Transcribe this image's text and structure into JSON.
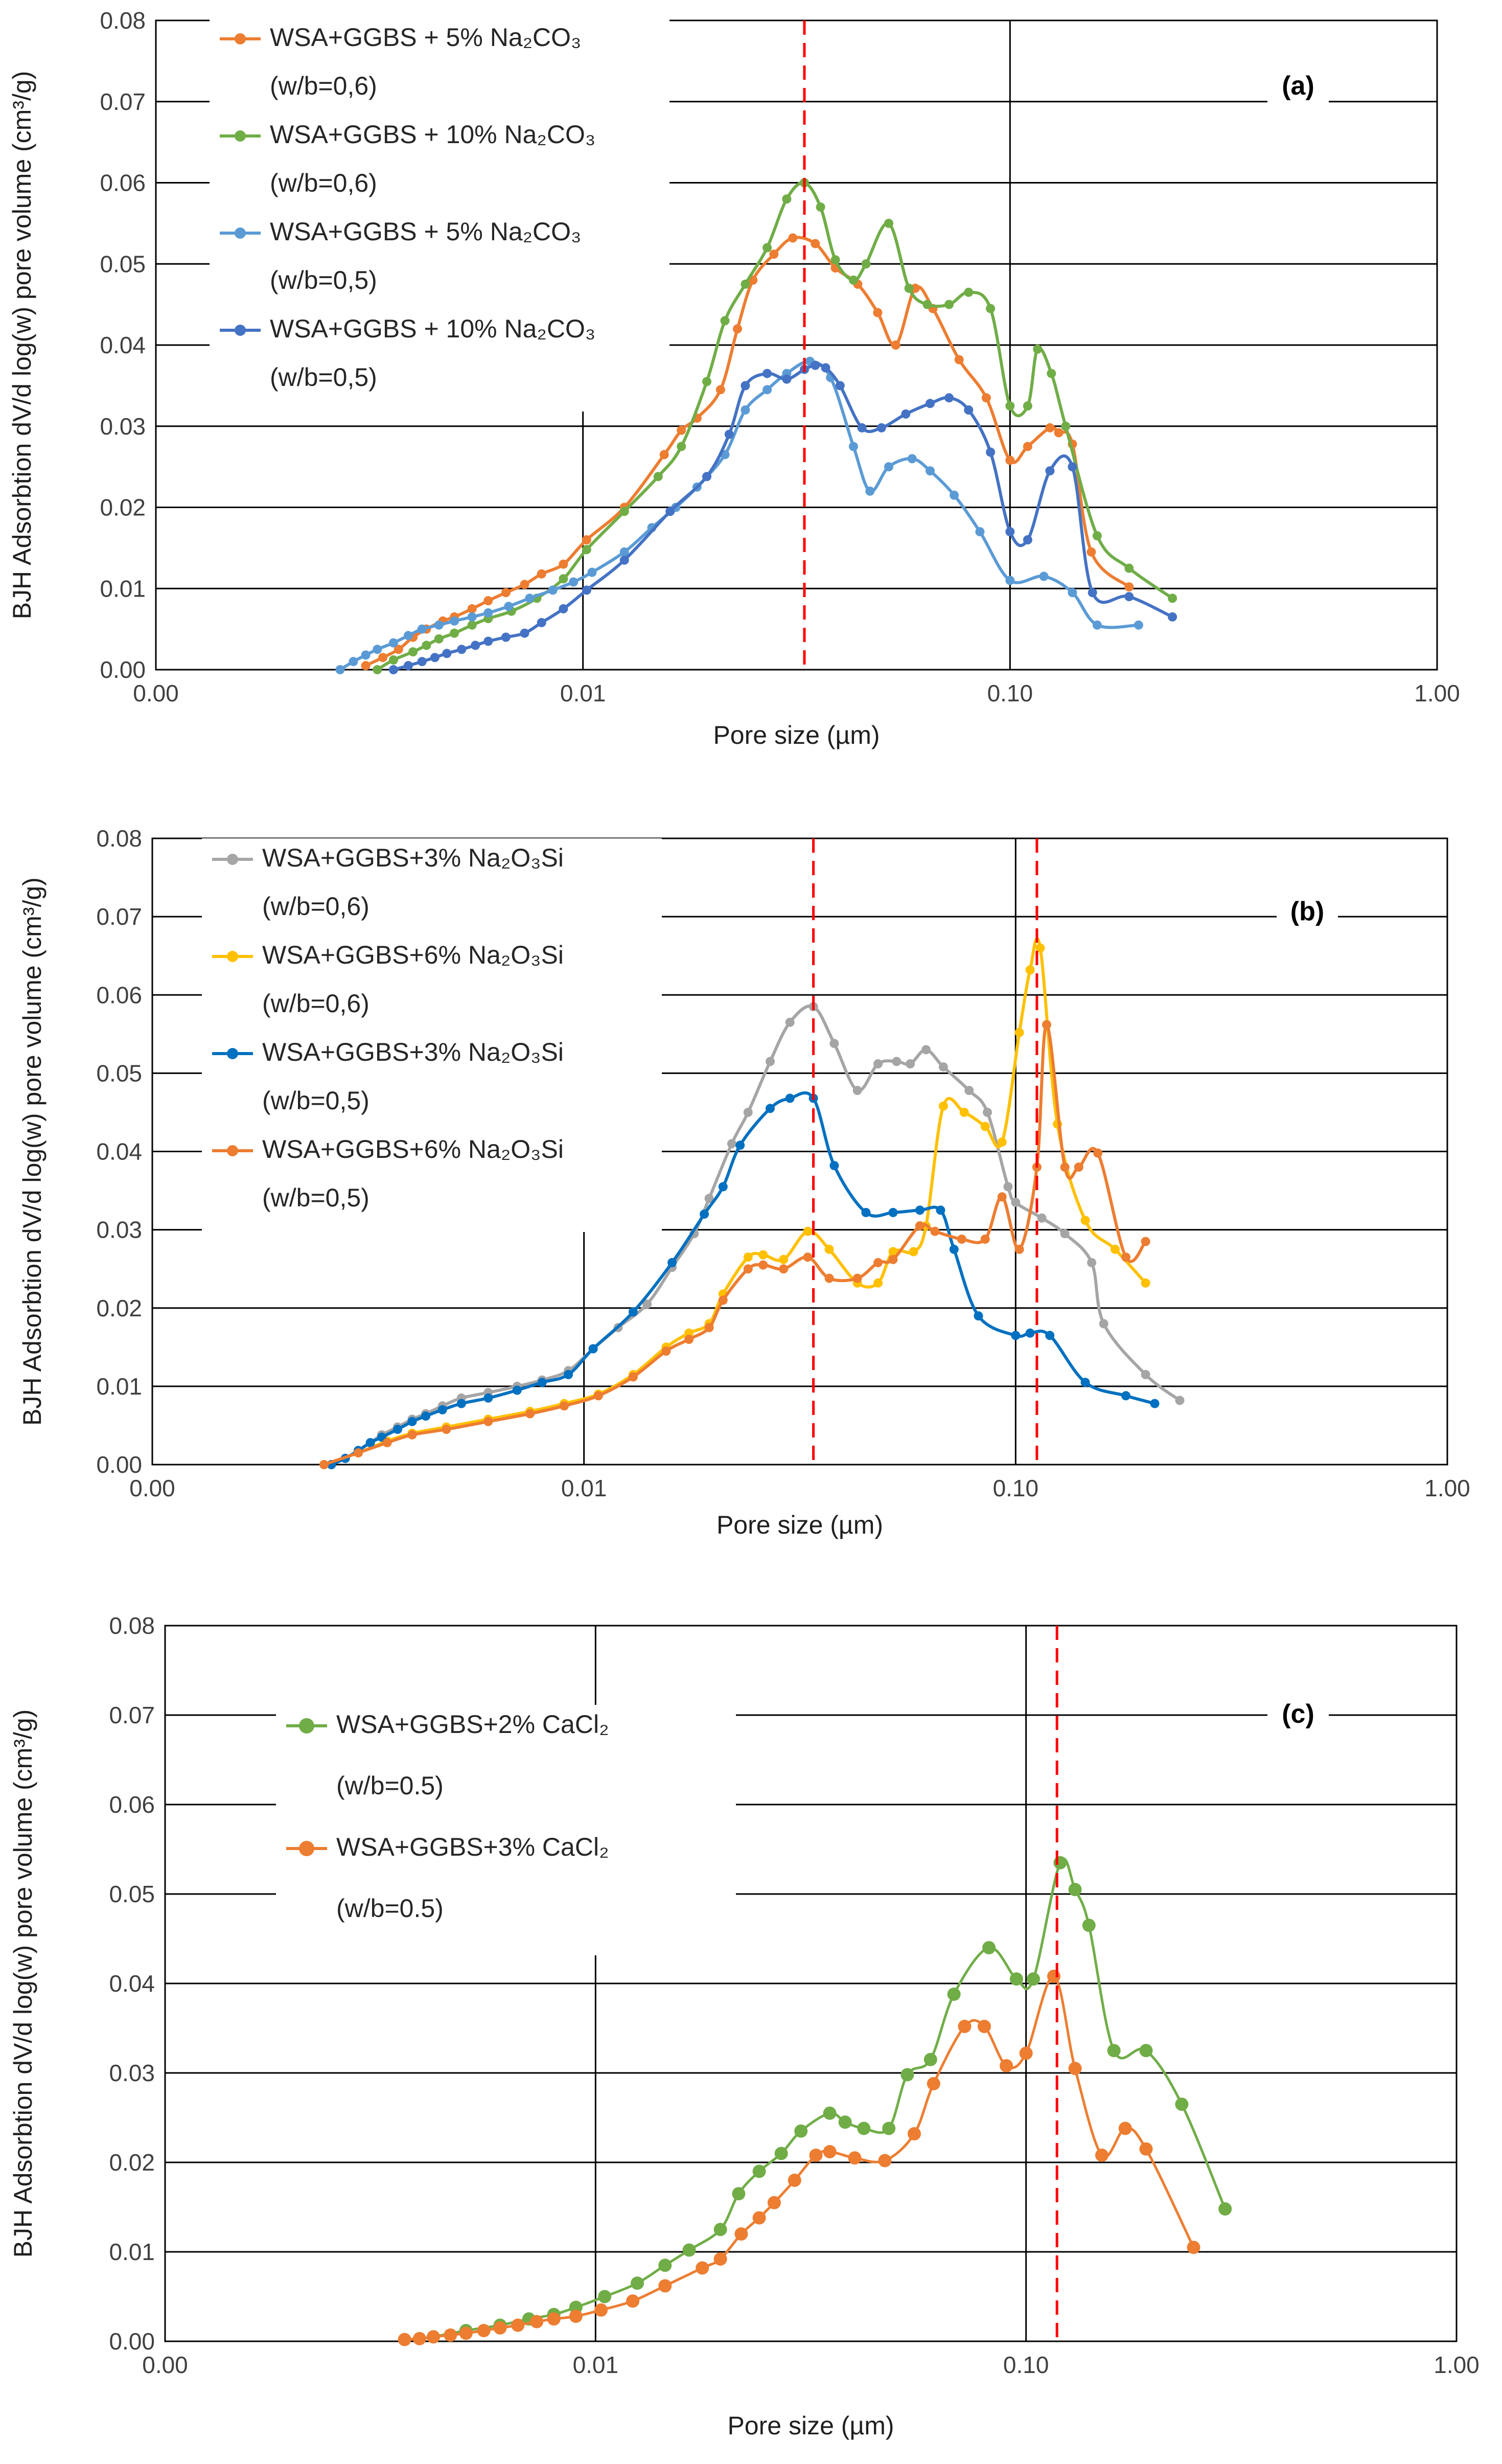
{
  "chart_data": [
    {
      "type": "line",
      "panel_label": "(a)",
      "xlabel": "Pore size (µm)",
      "ylabel": "BJH Adsorbtion dV/d log(w) pore volume (cm³/g)",
      "x_scale": "log",
      "xlim": [
        0.001,
        1.0
      ],
      "ylim": [
        0,
        0.08
      ],
      "x_ticks": [
        "0.00",
        "0.01",
        "0.10",
        "1.00"
      ],
      "y_ticks": [
        "0.00",
        "0.01",
        "0.02",
        "0.03",
        "0.04",
        "0.05",
        "0.06",
        "0.07",
        "0.08"
      ],
      "grid": "horizontal",
      "legend_position": "top-left",
      "reference_lines": [
        0.033
      ],
      "series": [
        {
          "name": "WSA+GGBS + 5% Na₂CO₃",
          "subname": "(w/b=0,6)",
          "color": "#ED7D31",
          "x": [
            0.0031,
            0.0034,
            0.0037,
            0.004,
            0.0043,
            0.0047,
            0.005,
            0.0055,
            0.006,
            0.0066,
            0.0073,
            0.008,
            0.009,
            0.0102,
            0.0125,
            0.0155,
            0.017,
            0.0185,
            0.021,
            0.023,
            0.025,
            0.028,
            0.031,
            0.035,
            0.039,
            0.044,
            0.049,
            0.054,
            0.06,
            0.066,
            0.076,
            0.088,
            0.1,
            0.11,
            0.124,
            0.13,
            0.14,
            0.155,
            0.19
          ],
          "y": [
            0.0005,
            0.0015,
            0.0025,
            0.004,
            0.005,
            0.006,
            0.0065,
            0.0075,
            0.0085,
            0.0095,
            0.0105,
            0.0118,
            0.013,
            0.016,
            0.02,
            0.0265,
            0.0295,
            0.031,
            0.0345,
            0.042,
            0.048,
            0.0512,
            0.0532,
            0.0525,
            0.0495,
            0.0475,
            0.044,
            0.04,
            0.047,
            0.0445,
            0.0382,
            0.0335,
            0.0258,
            0.0275,
            0.0298,
            0.0292,
            0.0278,
            0.0145,
            0.0102
          ]
        },
        {
          "name": "WSA+GGBS + 10% Na₂CO₃",
          "subname": "(w/b=0,6)",
          "color": "#70AD47",
          "x": [
            0.0033,
            0.0036,
            0.004,
            0.0043,
            0.0046,
            0.005,
            0.0055,
            0.006,
            0.0068,
            0.0078,
            0.009,
            0.0102,
            0.0125,
            0.015,
            0.017,
            0.0195,
            0.0215,
            0.024,
            0.027,
            0.03,
            0.033,
            0.036,
            0.039,
            0.043,
            0.046,
            0.052,
            0.058,
            0.064,
            0.072,
            0.08,
            0.09,
            0.1,
            0.11,
            0.116,
            0.125,
            0.135,
            0.16,
            0.19,
            0.24
          ],
          "y": [
            0,
            0.0012,
            0.0022,
            0.003,
            0.0038,
            0.0045,
            0.0055,
            0.0063,
            0.0072,
            0.0088,
            0.0112,
            0.0148,
            0.0195,
            0.0238,
            0.0275,
            0.0355,
            0.043,
            0.0475,
            0.052,
            0.058,
            0.06,
            0.057,
            0.0505,
            0.048,
            0.05,
            0.055,
            0.047,
            0.045,
            0.045,
            0.0465,
            0.0445,
            0.0325,
            0.0325,
            0.0395,
            0.0365,
            0.03,
            0.0165,
            0.0125,
            0.0088
          ]
        },
        {
          "name": "WSA+GGBS + 5% Na₂CO₃",
          "subname": "(w/b=0,5)",
          "color": "#5B9BD5",
          "x": [
            0.0027,
            0.0029,
            0.0031,
            0.0033,
            0.0036,
            0.0039,
            0.0042,
            0.0046,
            0.005,
            0.0055,
            0.006,
            0.0067,
            0.0075,
            0.0085,
            0.0095,
            0.0105,
            0.0125,
            0.0145,
            0.0165,
            0.0185,
            0.0215,
            0.024,
            0.027,
            0.03,
            0.034,
            0.038,
            0.043,
            0.047,
            0.052,
            0.059,
            0.065,
            0.074,
            0.085,
            0.1,
            0.12,
            0.14,
            0.16,
            0.2
          ],
          "y": [
            0,
            0.001,
            0.0018,
            0.0025,
            0.0033,
            0.0042,
            0.005,
            0.0055,
            0.006,
            0.0065,
            0.007,
            0.0078,
            0.0088,
            0.0098,
            0.0108,
            0.012,
            0.0145,
            0.0175,
            0.02,
            0.0225,
            0.0265,
            0.032,
            0.0345,
            0.0365,
            0.038,
            0.036,
            0.0275,
            0.022,
            0.025,
            0.026,
            0.0245,
            0.0215,
            0.017,
            0.011,
            0.0115,
            0.0095,
            0.0055,
            0.0055
          ]
        },
        {
          "name": "WSA+GGBS + 10% Na₂CO₃",
          "subname": "(w/b=0,5)",
          "color": "#4472C4",
          "x": [
            0.0036,
            0.0039,
            0.0042,
            0.0045,
            0.0048,
            0.0052,
            0.0056,
            0.006,
            0.0066,
            0.0073,
            0.008,
            0.009,
            0.0102,
            0.0125,
            0.016,
            0.0195,
            0.022,
            0.024,
            0.027,
            0.03,
            0.033,
            0.035,
            0.037,
            0.04,
            0.045,
            0.05,
            0.057,
            0.065,
            0.072,
            0.08,
            0.09,
            0.1,
            0.11,
            0.124,
            0.14,
            0.156,
            0.19,
            0.24
          ],
          "y": [
            0,
            0.0005,
            0.001,
            0.0015,
            0.002,
            0.0025,
            0.003,
            0.0035,
            0.004,
            0.0045,
            0.0058,
            0.0075,
            0.0098,
            0.0135,
            0.0195,
            0.0238,
            0.029,
            0.035,
            0.0365,
            0.0358,
            0.037,
            0.0375,
            0.0372,
            0.035,
            0.0298,
            0.0298,
            0.0315,
            0.0328,
            0.0335,
            0.032,
            0.0268,
            0.017,
            0.016,
            0.0245,
            0.025,
            0.0095,
            0.009,
            0.0065
          ]
        }
      ]
    },
    {
      "type": "line",
      "panel_label": "(b)",
      "xlabel": "Pore size (µm)",
      "ylabel": "BJH Adsorbtion dV/d log(w) pore volume (cm³/g)",
      "x_scale": "log",
      "xlim": [
        0.001,
        1.0
      ],
      "ylim": [
        0,
        0.08
      ],
      "x_ticks": [
        "0.00",
        "0.01",
        "0.10",
        "1.00"
      ],
      "y_ticks": [
        "0.00",
        "0.01",
        "0.02",
        "0.03",
        "0.04",
        "0.05",
        "0.06",
        "0.07",
        "0.08"
      ],
      "grid": "horizontal",
      "legend_position": "top-left",
      "reference_lines": [
        0.034,
        0.112
      ],
      "series": [
        {
          "name": "WSA+GGBS+3% Na₂O₃Si",
          "subname": "(w/b=0,6)",
          "color": "#A5A5A5",
          "x": [
            0.0026,
            0.0028,
            0.003,
            0.0032,
            0.0034,
            0.0037,
            0.004,
            0.0043,
            0.0047,
            0.0052,
            0.006,
            0.007,
            0.008,
            0.0092,
            0.0105,
            0.012,
            0.014,
            0.016,
            0.018,
            0.0195,
            0.022,
            0.024,
            0.027,
            0.03,
            0.034,
            0.038,
            0.043,
            0.048,
            0.053,
            0.057,
            0.062,
            0.068,
            0.078,
            0.086,
            0.096,
            0.1,
            0.115,
            0.13,
            0.15,
            0.16,
            0.2,
            0.24
          ],
          "y": [
            0,
            0.0008,
            0.0018,
            0.0028,
            0.0038,
            0.0048,
            0.0058,
            0.0065,
            0.0075,
            0.0085,
            0.0092,
            0.01,
            0.0108,
            0.012,
            0.0148,
            0.0175,
            0.0205,
            0.0252,
            0.0295,
            0.034,
            0.041,
            0.045,
            0.0515,
            0.0565,
            0.0585,
            0.0538,
            0.0478,
            0.0512,
            0.0515,
            0.0512,
            0.053,
            0.0508,
            0.0478,
            0.045,
            0.0355,
            0.0335,
            0.0315,
            0.0295,
            0.0258,
            0.018,
            0.0115,
            0.0082
          ]
        },
        {
          "name": "WSA+GGBS+6% Na₂O₃Si",
          "subname": "(w/b=0,6)",
          "color": "#FFC000",
          "x": [
            0.0025,
            0.003,
            0.0035,
            0.004,
            0.0048,
            0.006,
            0.0075,
            0.009,
            0.0108,
            0.013,
            0.0155,
            0.0175,
            0.0195,
            0.021,
            0.024,
            0.026,
            0.029,
            0.033,
            0.037,
            0.043,
            0.048,
            0.052,
            0.058,
            0.062,
            0.068,
            0.076,
            0.085,
            0.093,
            0.102,
            0.108,
            0.114,
            0.125,
            0.145,
            0.17,
            0.2
          ],
          "y": [
            0,
            0.0015,
            0.003,
            0.004,
            0.0048,
            0.0058,
            0.0068,
            0.0078,
            0.009,
            0.0115,
            0.015,
            0.0168,
            0.018,
            0.0218,
            0.0265,
            0.0268,
            0.0262,
            0.0298,
            0.0275,
            0.0232,
            0.0232,
            0.0272,
            0.0272,
            0.0305,
            0.0458,
            0.045,
            0.0432,
            0.0412,
            0.0552,
            0.0632,
            0.066,
            0.0435,
            0.0312,
            0.0275,
            0.0232
          ]
        },
        {
          "name": "WSA+GGBS+3% Na₂O₃Si",
          "subname": "(w/b=0,5)",
          "color": "#0070C0",
          "x": [
            0.0026,
            0.0028,
            0.003,
            0.0032,
            0.0034,
            0.0037,
            0.004,
            0.0043,
            0.0047,
            0.0052,
            0.006,
            0.007,
            0.008,
            0.0092,
            0.0105,
            0.013,
            0.016,
            0.019,
            0.021,
            0.023,
            0.027,
            0.03,
            0.034,
            0.038,
            0.045,
            0.052,
            0.06,
            0.067,
            0.072,
            0.082,
            0.1,
            0.108,
            0.12,
            0.145,
            0.18,
            0.21
          ],
          "y": [
            0,
            0.0008,
            0.0018,
            0.0028,
            0.0035,
            0.0045,
            0.0055,
            0.0062,
            0.007,
            0.0078,
            0.0085,
            0.0095,
            0.0105,
            0.0115,
            0.0148,
            0.0195,
            0.0258,
            0.032,
            0.0355,
            0.0408,
            0.0455,
            0.0468,
            0.0468,
            0.0382,
            0.0322,
            0.0322,
            0.0325,
            0.0325,
            0.0275,
            0.019,
            0.0165,
            0.0168,
            0.0165,
            0.0105,
            0.0088,
            0.0078
          ]
        },
        {
          "name": "WSA+GGBS+6% Na₂O₃Si",
          "subname": "(w/b=0,5)",
          "color": "#ED7D31",
          "x": [
            0.0025,
            0.003,
            0.0035,
            0.004,
            0.0048,
            0.006,
            0.0075,
            0.009,
            0.0108,
            0.013,
            0.0155,
            0.0175,
            0.0195,
            0.021,
            0.024,
            0.026,
            0.029,
            0.033,
            0.037,
            0.043,
            0.048,
            0.052,
            0.06,
            0.065,
            0.075,
            0.085,
            0.093,
            0.102,
            0.112,
            0.118,
            0.13,
            0.14,
            0.155,
            0.18,
            0.2
          ],
          "y": [
            0,
            0.0015,
            0.0028,
            0.0038,
            0.0045,
            0.0055,
            0.0065,
            0.0075,
            0.0088,
            0.0112,
            0.0145,
            0.016,
            0.0175,
            0.021,
            0.025,
            0.0255,
            0.025,
            0.0265,
            0.0238,
            0.0238,
            0.0258,
            0.0262,
            0.0305,
            0.0298,
            0.0288,
            0.0288,
            0.0342,
            0.0275,
            0.038,
            0.0562,
            0.038,
            0.038,
            0.0398,
            0.0265,
            0.0285
          ]
        }
      ]
    },
    {
      "type": "line",
      "panel_label": "(c)",
      "xlabel": "Pore size (µm)",
      "ylabel": "BJH Adsorbtion dV/d log(w) pore volume (cm³/g)",
      "x_scale": "log",
      "xlim": [
        0.001,
        1.0
      ],
      "ylim": [
        0,
        0.08
      ],
      "x_ticks": [
        "0.00",
        "0.01",
        "0.10",
        "1.00"
      ],
      "y_ticks": [
        "0.00",
        "0.01",
        "0.02",
        "0.03",
        "0.04",
        "0.05",
        "0.06",
        "0.07",
        "0.08"
      ],
      "grid": "horizontal",
      "legend_position": "top-left",
      "reference_lines": [
        0.118
      ],
      "series": [
        {
          "name": "WSA+GGBS+2% CaCl₂",
          "subname": "(w/b=0.5)",
          "color": "#70AD47",
          "x": [
            0.0042,
            0.005,
            0.006,
            0.007,
            0.008,
            0.009,
            0.0105,
            0.0125,
            0.0145,
            0.0165,
            0.0195,
            0.0215,
            0.024,
            0.027,
            0.03,
            0.035,
            0.038,
            0.042,
            0.048,
            0.053,
            0.06,
            0.068,
            0.082,
            0.095,
            0.104,
            0.12,
            0.13,
            0.14,
            0.16,
            0.19,
            0.23,
            0.29
          ],
          "y": [
            0.0005,
            0.0012,
            0.0018,
            0.0025,
            0.003,
            0.0038,
            0.005,
            0.0065,
            0.0085,
            0.0102,
            0.0125,
            0.0165,
            0.019,
            0.021,
            0.0235,
            0.0255,
            0.0245,
            0.0238,
            0.0238,
            0.0298,
            0.0315,
            0.0388,
            0.044,
            0.0405,
            0.0405,
            0.0535,
            0.0505,
            0.0465,
            0.0325,
            0.0325,
            0.0265,
            0.0148
          ]
        },
        {
          "name": "WSA+GGBS+3% CaCl₂",
          "subname": "(w/b=0.5)",
          "color": "#ED7D31",
          "x": [
            0.0036,
            0.0039,
            0.0042,
            0.0046,
            0.005,
            0.0055,
            0.006,
            0.0066,
            0.0073,
            0.008,
            0.009,
            0.0103,
            0.0122,
            0.0145,
            0.0177,
            0.0195,
            0.0218,
            0.024,
            0.026,
            0.029,
            0.0325,
            0.035,
            0.04,
            0.047,
            0.055,
            0.061,
            0.072,
            0.08,
            0.09,
            0.1,
            0.116,
            0.13,
            0.15,
            0.17,
            0.19,
            0.245
          ],
          "y": [
            0.0002,
            0.0003,
            0.0005,
            0.0007,
            0.0009,
            0.0012,
            0.0015,
            0.0018,
            0.0022,
            0.0025,
            0.0028,
            0.0035,
            0.0045,
            0.0062,
            0.0082,
            0.0092,
            0.012,
            0.0138,
            0.0155,
            0.018,
            0.0208,
            0.0212,
            0.0205,
            0.0202,
            0.0232,
            0.0288,
            0.0352,
            0.0352,
            0.0308,
            0.0322,
            0.0408,
            0.0305,
            0.0208,
            0.0238,
            0.0215,
            0.0105
          ]
        }
      ]
    }
  ]
}
